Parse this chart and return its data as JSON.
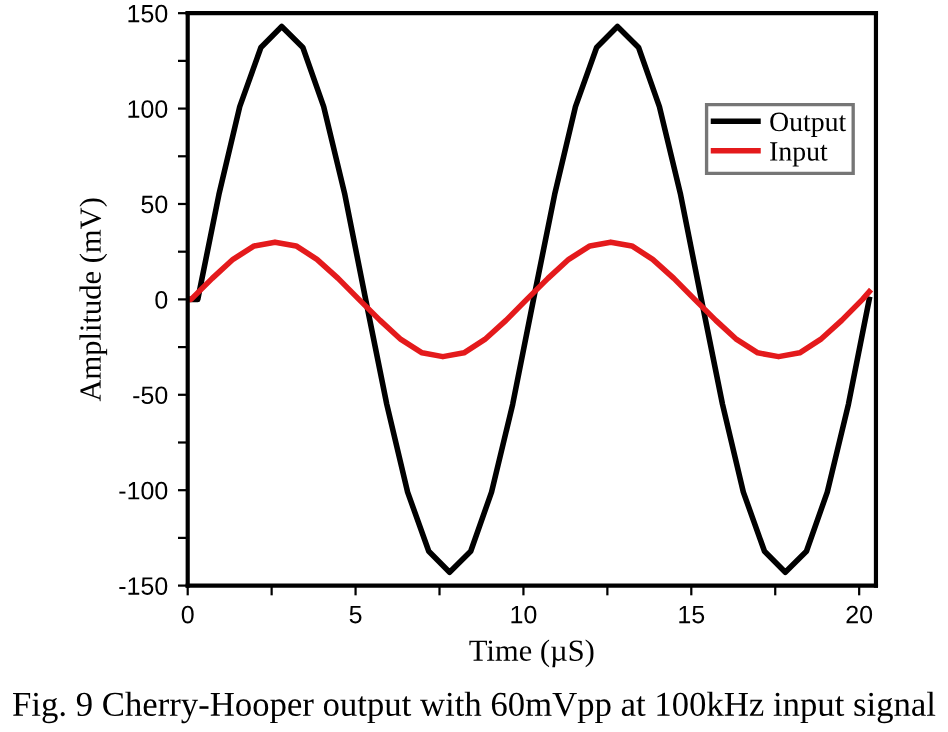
{
  "chart_data": {
    "type": "line",
    "xlabel": "Time (µS)",
    "ylabel": "Amplitude (mV)",
    "annotations": [
      "Fig. 9 Cherry-Hooper output with 60mVpp at 100kHz input signal"
    ],
    "series": [
      {
        "name": "Output",
        "color": "#000000",
        "x": [
          0.0,
          0.3,
          0.93,
          1.55,
          2.18,
          2.8,
          3.43,
          4.05,
          4.68,
          5.3,
          5.93,
          6.55,
          7.18,
          7.8,
          8.43,
          9.05,
          9.68,
          10.3,
          10.93,
          11.55,
          12.18,
          12.8,
          13.43,
          14.05,
          14.68,
          15.3,
          15.93,
          16.55,
          17.18,
          17.8,
          18.43,
          19.05,
          19.68,
          20.3
        ],
        "values": [
          0,
          0,
          55,
          101,
          132,
          143,
          132,
          101,
          55,
          0,
          -55,
          -101,
          -132,
          -143,
          -132,
          -101,
          -55,
          0,
          55,
          101,
          132,
          143,
          132,
          101,
          55,
          0,
          -55,
          -101,
          -132,
          -143,
          -132,
          -101,
          -55,
          0
        ]
      },
      {
        "name": "Input",
        "color": "#e41a1c",
        "x": [
          0.0,
          0.1,
          0.73,
          1.35,
          1.98,
          2.6,
          3.23,
          3.85,
          4.48,
          5.1,
          5.73,
          6.35,
          6.98,
          7.6,
          8.23,
          8.85,
          9.48,
          10.1,
          10.73,
          11.35,
          11.98,
          12.6,
          13.23,
          13.85,
          14.48,
          15.1,
          15.73,
          16.35,
          16.98,
          17.6,
          18.23,
          18.85,
          19.48,
          20.1,
          20.3
        ],
        "values": [
          0,
          0,
          11,
          21,
          28,
          30,
          28,
          21,
          11,
          0,
          -11,
          -21,
          -28,
          -30,
          -28,
          -21,
          -11,
          0,
          11,
          21,
          28,
          30,
          28,
          21,
          11,
          0,
          -11,
          -21,
          -28,
          -30,
          -28,
          -21,
          -11,
          0,
          4
        ]
      }
    ],
    "xlim": [
      0,
      20.5
    ],
    "ylim": [
      -150,
      150
    ],
    "xticks": [
      0,
      {
        "value": 2.5,
        "label": null
      },
      5,
      {
        "value": 7.5,
        "label": null
      },
      10,
      {
        "value": 12.5,
        "label": null
      },
      15,
      {
        "value": 17.5,
        "label": null
      },
      20
    ],
    "yticks": [
      -150,
      {
        "value": -125,
        "label": null
      },
      -100,
      {
        "value": -75,
        "label": null
      },
      -50,
      {
        "value": -25,
        "label": null
      },
      0,
      {
        "value": 25,
        "label": null
      },
      50,
      {
        "value": 75,
        "label": null
      },
      100,
      {
        "value": 125,
        "label": null
      },
      150
    ],
    "legend": "top right",
    "grid": false,
    "marker": "none",
    "line_style": "solid"
  }
}
